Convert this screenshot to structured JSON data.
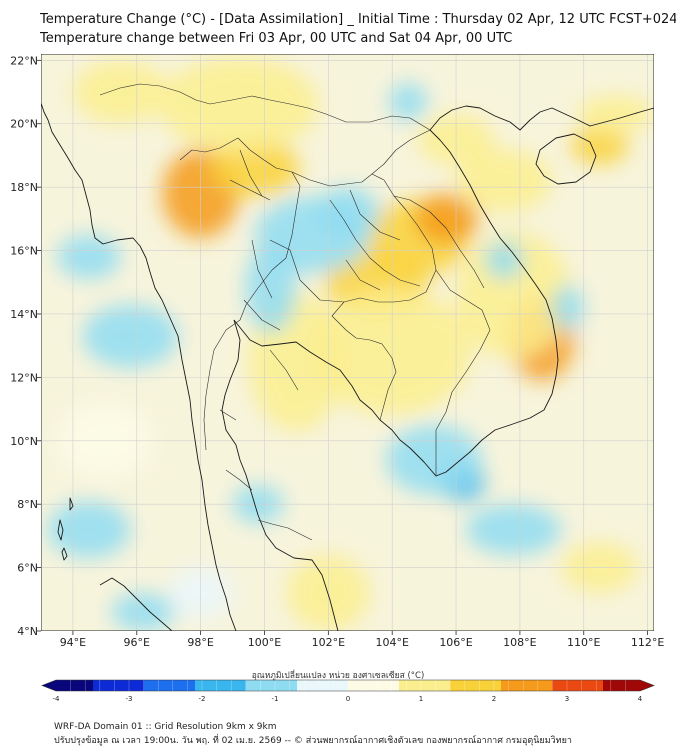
{
  "header": {
    "title_line1": "Temperature Change (°C) - [Data Assimilation] _ Initial Time : Thursday 02 Apr, 12 UTC FCST+024",
    "title_line2": "Temperature change between Fri 03 Apr, 00 UTC and Sat 04 Apr, 00 UTC"
  },
  "map": {
    "lon_range": [
      93,
      112.2
    ],
    "lat_range": [
      4,
      22.2
    ],
    "lon_ticks": [
      {
        "value": 94,
        "label": "94°E"
      },
      {
        "value": 96,
        "label": "96°E"
      },
      {
        "value": 98,
        "label": "98°E"
      },
      {
        "value": 100,
        "label": "100°E"
      },
      {
        "value": 102,
        "label": "102°E"
      },
      {
        "value": 104,
        "label": "104°E"
      },
      {
        "value": 106,
        "label": "106°E"
      },
      {
        "value": 108,
        "label": "108°E"
      },
      {
        "value": 110,
        "label": "110°E"
      },
      {
        "value": 112,
        "label": "112°E"
      }
    ],
    "lat_ticks": [
      {
        "value": 4,
        "label": "4°N"
      },
      {
        "value": 6,
        "label": "6°N"
      },
      {
        "value": 8,
        "label": "8°N"
      },
      {
        "value": 10,
        "label": "10°N"
      },
      {
        "value": 12,
        "label": "12°N"
      },
      {
        "value": 14,
        "label": "14°N"
      },
      {
        "value": 16,
        "label": "16°N"
      },
      {
        "value": 18,
        "label": "18°N"
      },
      {
        "value": 20,
        "label": "20°N"
      },
      {
        "value": 22,
        "label": "22°N"
      }
    ],
    "gridlines": true,
    "field_blobs": [
      {
        "lon": 98.0,
        "lat": 17.8,
        "rx": 1.2,
        "ry": 1.4,
        "delta": 2.0
      },
      {
        "lon": 99.7,
        "lat": 18.6,
        "rx": 1.4,
        "ry": 0.9,
        "delta": 1.9
      },
      {
        "lon": 104.8,
        "lat": 16.4,
        "rx": 1.6,
        "ry": 1.2,
        "delta": 1.9
      },
      {
        "lon": 105.7,
        "lat": 17.0,
        "rx": 1.0,
        "ry": 0.8,
        "delta": 2.3
      },
      {
        "lon": 103.5,
        "lat": 15.0,
        "rx": 1.6,
        "ry": 1.0,
        "delta": 1.4
      },
      {
        "lon": 108.7,
        "lat": 13.2,
        "rx": 1.0,
        "ry": 1.3,
        "delta": 2.6
      },
      {
        "lon": 107.8,
        "lat": 14.6,
        "rx": 1.8,
        "ry": 2.0,
        "delta": 1.3
      },
      {
        "lon": 107.5,
        "lat": 18.2,
        "rx": 1.5,
        "ry": 1.0,
        "delta": 1.2
      },
      {
        "lon": 106.0,
        "lat": 19.5,
        "rx": 1.2,
        "ry": 0.8,
        "delta": 1.1
      },
      {
        "lon": 110.5,
        "lat": 19.3,
        "rx": 0.9,
        "ry": 0.6,
        "delta": 1.4
      },
      {
        "lon": 111.0,
        "lat": 20.3,
        "rx": 1.2,
        "ry": 0.6,
        "delta": 0.8
      },
      {
        "lon": 101.0,
        "lat": 12.5,
        "rx": 1.5,
        "ry": 2.2,
        "delta": 1.0
      },
      {
        "lon": 104.0,
        "lat": 12.8,
        "rx": 2.5,
        "ry": 2.0,
        "delta": 0.9
      },
      {
        "lon": 102.0,
        "lat": 5.2,
        "rx": 1.3,
        "ry": 1.2,
        "delta": 1.3
      },
      {
        "lon": 110.5,
        "lat": 6.0,
        "rx": 1.2,
        "ry": 0.8,
        "delta": 1.0
      },
      {
        "lon": 99.2,
        "lat": 20.6,
        "rx": 2.5,
        "ry": 1.5,
        "delta": 0.9
      },
      {
        "lon": 95.5,
        "lat": 21.0,
        "rx": 1.5,
        "ry": 1.0,
        "delta": 0.7
      },
      {
        "lon": 95.0,
        "lat": 10.0,
        "rx": 1.5,
        "ry": 1.2,
        "delta": 0.6
      },
      {
        "lon": 101.5,
        "lat": 16.5,
        "rx": 1.8,
        "ry": 1.2,
        "delta": -1.2
      },
      {
        "lon": 100.2,
        "lat": 14.8,
        "rx": 0.8,
        "ry": 1.4,
        "delta": -1.0
      },
      {
        "lon": 102.6,
        "lat": 17.2,
        "rx": 1.0,
        "ry": 0.8,
        "delta": -1.1
      },
      {
        "lon": 106.2,
        "lat": 8.7,
        "rx": 0.7,
        "ry": 0.6,
        "delta": -1.7
      },
      {
        "lon": 105.3,
        "lat": 9.4,
        "rx": 1.5,
        "ry": 1.1,
        "delta": -1.2
      },
      {
        "lon": 104.5,
        "lat": 20.7,
        "rx": 0.6,
        "ry": 0.6,
        "delta": -1.1
      },
      {
        "lon": 107.5,
        "lat": 15.7,
        "rx": 0.6,
        "ry": 0.6,
        "delta": -1.0
      },
      {
        "lon": 109.5,
        "lat": 14.2,
        "rx": 0.5,
        "ry": 0.7,
        "delta": -0.9
      },
      {
        "lon": 94.5,
        "lat": 15.8,
        "rx": 1.0,
        "ry": 0.7,
        "delta": -0.8
      },
      {
        "lon": 95.8,
        "lat": 13.3,
        "rx": 1.5,
        "ry": 1.0,
        "delta": -1.0
      },
      {
        "lon": 96.2,
        "lat": 4.6,
        "rx": 1.0,
        "ry": 0.6,
        "delta": -0.9
      },
      {
        "lon": 99.8,
        "lat": 8.0,
        "rx": 0.8,
        "ry": 0.6,
        "delta": -0.9
      },
      {
        "lon": 94.5,
        "lat": 7.2,
        "rx": 1.3,
        "ry": 0.9,
        "delta": -0.9
      },
      {
        "lon": 107.8,
        "lat": 7.2,
        "rx": 1.5,
        "ry": 0.8,
        "delta": -0.7
      },
      {
        "lon": 98.0,
        "lat": 5.2,
        "rx": 1.0,
        "ry": 0.8,
        "delta": -0.6
      }
    ]
  },
  "colorbar": {
    "title": "อุณหภูมิเปลี่ยนแปลง หน่วย องศาเซลเซียส (°C)",
    "min": -4,
    "max": 4,
    "ticks": [
      -4,
      -3,
      -2,
      -1,
      0,
      1,
      2,
      3,
      4
    ],
    "tick_labels": [
      "-4",
      "-3",
      "-2",
      "-1",
      "0",
      "1",
      "2",
      "3",
      "4"
    ],
    "colors": [
      "#08067a",
      "#0c2bd6",
      "#1e6ef0",
      "#3ab6ee",
      "#8fdcf2",
      "#eaf7fb",
      "#fdfbe6",
      "#fbee8e",
      "#f9d23a",
      "#f59a1a",
      "#ea4a12",
      "#a00808"
    ]
  },
  "footer": {
    "line1": "WRF-DA Domain 01 :: Grid Resolution 9km x 9km",
    "line2": "ปรับปรุงข้อมูล ณ เวลา 19:00น. วัน พฤ. ที่ 02 เม.ย. 2569 -- © ส่วนพยากรณ์อากาศเชิงตัวเลข กองพยากรณ์อากาศ กรมอุตุนิยมวิทยา"
  }
}
